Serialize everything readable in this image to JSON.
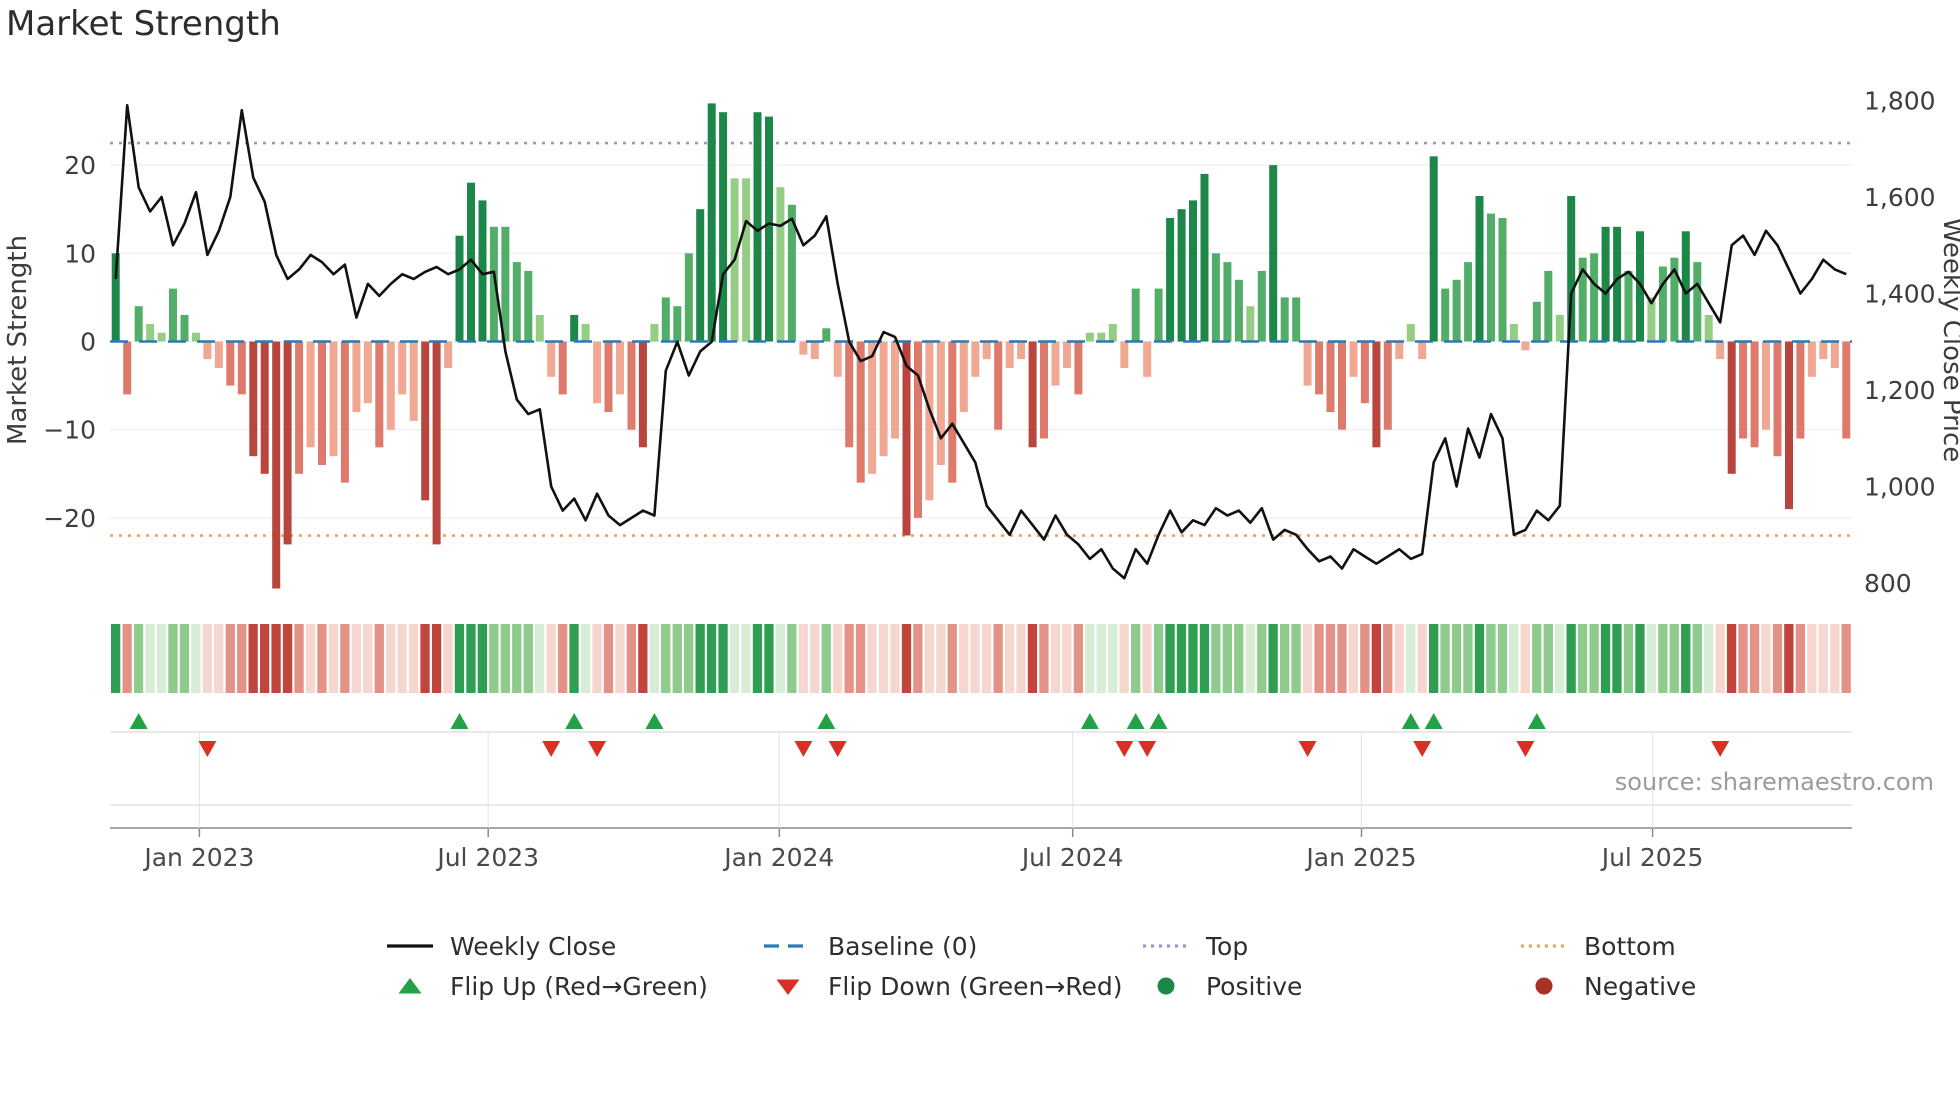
{
  "title": "Market Strength",
  "source": "source: sharemaestro.com",
  "axes": {
    "left_label": "Market Strength",
    "right_label": "Weekly Close Price",
    "left_ticks": [
      20,
      10,
      0,
      -10,
      -20
    ],
    "right_ticks": [
      1800,
      1600,
      1400,
      1200,
      1000,
      800
    ],
    "x_ticks": [
      "Jan 2023",
      "Jul 2023",
      "Jan 2024",
      "Jul 2024",
      "Jan 2025",
      "Jul 2025"
    ],
    "x_tick_weeks": [
      7.8,
      33,
      58.4,
      84,
      109.2,
      134.6
    ]
  },
  "legend": {
    "row1": [
      {
        "label": "Weekly Close"
      },
      {
        "label": "Baseline (0)"
      },
      {
        "label": "Top"
      },
      {
        "label": "Bottom"
      }
    ],
    "row2": [
      {
        "label": "Flip Up (Red→Green)"
      },
      {
        "label": "Flip Down (Green→Red)"
      },
      {
        "label": "Positive"
      },
      {
        "label": "Negative"
      }
    ]
  },
  "colors": {
    "price_line": "#111111",
    "baseline": "#2a7ab5",
    "top": "#a98bd6",
    "bottom": "#f0a35e",
    "flip_up": "#23a147",
    "flip_down": "#d93025",
    "positive_dot": "#1d8649",
    "negative_dot": "#a93226",
    "pos_bar": {
      "d": "#1d8649",
      "m": "#51ad68",
      "l": "#96cd85"
    },
    "neg_bar": {
      "d": "#b8453e",
      "m": "#dd7a6c",
      "l": "#f1a893"
    },
    "pos_heat": {
      "d": "#2f9e52",
      "m": "#8ecb8c",
      "l": "#d8edd6"
    },
    "neg_heat": {
      "d": "#c0453c",
      "m": "#e39287",
      "l": "#f6d7d0"
    }
  },
  "chart_data": {
    "type": "combo bar+line+heatmap",
    "title": "Market Strength",
    "left_axis": "Market Strength",
    "right_axis": "Weekly Close Price",
    "left_ylim": [
      -30,
      28
    ],
    "right_ylim": [
      750,
      1815
    ],
    "baseline": 0,
    "top_line": 22.5,
    "bottom_line": -22,
    "weeks": 152,
    "strength": [
      10,
      -6,
      4,
      2,
      1,
      6,
      3,
      1,
      -2,
      -3,
      -5,
      -6,
      -13,
      -15,
      -28,
      -23,
      -15,
      -12,
      -14,
      -13,
      -16,
      -8,
      -7,
      -12,
      -10,
      -6,
      -9,
      -18,
      -23,
      -3,
      12,
      18,
      16,
      13,
      13,
      9,
      8,
      3,
      -4,
      -6,
      3,
      2,
      -7,
      -8,
      -6,
      -10,
      -12,
      2,
      5,
      4,
      10,
      15,
      27,
      26,
      18.5,
      18.5,
      26,
      25.5,
      17.5,
      15.5,
      -1.5,
      -2,
      1.5,
      -4,
      -12,
      -16,
      -15,
      -13,
      -11,
      -22,
      -20,
      -18,
      -14,
      -16,
      -8,
      -4,
      -2,
      -10,
      -3,
      -2,
      -12,
      -11,
      -5,
      -3,
      -6,
      1,
      1,
      2,
      -3,
      6,
      -4,
      6,
      14,
      15,
      16,
      19,
      10,
      9,
      7,
      4,
      8,
      20,
      5,
      5,
      -5,
      -6,
      -8,
      -10,
      -4,
      -7,
      -12,
      -10,
      -2,
      2,
      -2,
      21,
      6,
      7,
      9,
      16.5,
      14.5,
      14,
      2,
      -1,
      4.5,
      8,
      3,
      16.5,
      9.5,
      10,
      13,
      13,
      8,
      12.5,
      5,
      8.5,
      9.5,
      12.5,
      9,
      3,
      -2,
      -15,
      -11,
      -12,
      -10,
      -13,
      -19,
      -11,
      -4,
      -2,
      -3,
      -11
    ],
    "shades": "dmmllmmlllmmddddmlmlmllmlllddldddmmmmllmdllmlmdlmmmdddllddlmllmlmmllldmllmlllmlldmllmllllmlmddddmmmlmdmmlmmmlmdmllldmmmdmmllmmldmmddmdlmmdmlldmmlmdmlllm",
    "close": [
      1430,
      1790,
      1620,
      1570,
      1600,
      1500,
      1545,
      1610,
      1480,
      1530,
      1600,
      1780,
      1640,
      1590,
      1480,
      1430,
      1450,
      1480,
      1465,
      1440,
      1460,
      1350,
      1420,
      1395,
      1420,
      1440,
      1430,
      1445,
      1455,
      1440,
      1450,
      1470,
      1440,
      1445,
      1280,
      1180,
      1150,
      1160,
      1000,
      950,
      975,
      930,
      985,
      940,
      920,
      935,
      950,
      940,
      1240,
      1300,
      1230,
      1280,
      1300,
      1440,
      1470,
      1550,
      1530,
      1545,
      1540,
      1555,
      1500,
      1520,
      1560,
      1420,
      1300,
      1260,
      1270,
      1320,
      1310,
      1250,
      1230,
      1160,
      1100,
      1130,
      1090,
      1050,
      960,
      930,
      900,
      950,
      920,
      890,
      940,
      900,
      880,
      850,
      870,
      830,
      810,
      870,
      840,
      900,
      950,
      905,
      930,
      920,
      955,
      940,
      950,
      925,
      955,
      890,
      910,
      900,
      870,
      845,
      855,
      830,
      870,
      855,
      840,
      855,
      870,
      850,
      860,
      1050,
      1100,
      1000,
      1120,
      1060,
      1150,
      1100,
      900,
      910,
      950,
      930,
      960,
      1400,
      1450,
      1420,
      1400,
      1430,
      1445,
      1420,
      1380,
      1420,
      1450,
      1400,
      1420,
      1380,
      1340,
      1500,
      1520,
      1480,
      1530,
      1500,
      1450,
      1400,
      1430,
      1470,
      1450,
      1440
    ],
    "flip_up_weeks": [
      2,
      30,
      40,
      47,
      62,
      85,
      89,
      91,
      113,
      115,
      124
    ],
    "flip_down_weeks": [
      8,
      38,
      42,
      60,
      63,
      88,
      90,
      104,
      114,
      123,
      140
    ]
  }
}
